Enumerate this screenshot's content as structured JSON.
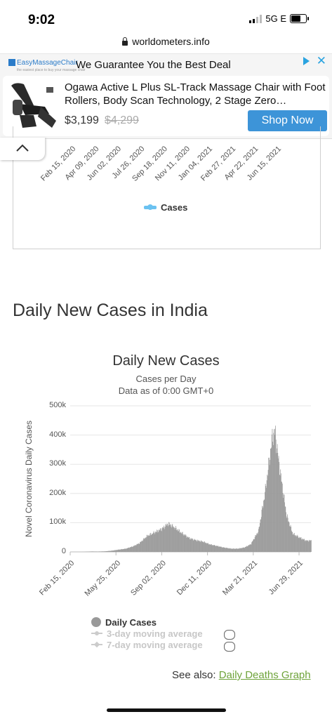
{
  "status_bar": {
    "time": "9:02",
    "network": "5G E"
  },
  "browser": {
    "url": "worldometers.info"
  },
  "ad": {
    "brand": "EasyMassageChair",
    "brand_tagline": "the easiest place to buy your massage chair",
    "headline": "We Guarantee You the Best Deal",
    "title": "Ogawa Active L Plus SL-Track Massage Chair with Foot Rollers, Body Scan Technology, 2 Stage Zero…",
    "price": "$3,199",
    "old_price": "$4,299",
    "cta": "Shop Now"
  },
  "prev_chart": {
    "x_ticks": [
      "Feb 15, 2020",
      "Apr 09, 2020",
      "Jun 02, 2020",
      "Jul 26, 2020",
      "Sep 18, 2020",
      "Nov 11, 2020",
      "Jan 04, 2021",
      "Feb 27, 2021",
      "Apr 22, 2021",
      "Jun 15, 2021"
    ],
    "legend": "Cases"
  },
  "section_heading": "Daily New Cases in India",
  "chart_data": {
    "type": "bar",
    "title": "Daily New Cases",
    "subtitle": "Cases per Day",
    "subtitle2": "Data as of 0:00 GMT+0",
    "ylabel": "Novel Coronavirus Daily Cases",
    "y_ticks": [
      "0",
      "100k",
      "200k",
      "300k",
      "400k",
      "500k"
    ],
    "ylim": [
      0,
      500000
    ],
    "x_ticks": [
      "Feb 15, 2020",
      "May 25, 2020",
      "Sep 02, 2020",
      "Dec 11, 2020",
      "Mar 21, 2021",
      "Jun 29, 2021"
    ],
    "series": [
      {
        "name": "Daily Cases",
        "color": "#999999",
        "points": [
          [
            "2020-02-15",
            0
          ],
          [
            "2020-03-15",
            100
          ],
          [
            "2020-04-01",
            1500
          ],
          [
            "2020-04-15",
            1200
          ],
          [
            "2020-05-01",
            2000
          ],
          [
            "2020-05-15",
            4000
          ],
          [
            "2020-06-01",
            8000
          ],
          [
            "2020-06-15",
            11000
          ],
          [
            "2020-07-01",
            19000
          ],
          [
            "2020-07-15",
            30000
          ],
          [
            "2020-08-01",
            55000
          ],
          [
            "2020-08-15",
            65000
          ],
          [
            "2020-09-01",
            78000
          ],
          [
            "2020-09-16",
            97000
          ],
          [
            "2020-10-01",
            82000
          ],
          [
            "2020-10-15",
            65000
          ],
          [
            "2020-11-01",
            47000
          ],
          [
            "2020-11-15",
            40000
          ],
          [
            "2020-12-01",
            35000
          ],
          [
            "2020-12-15",
            26000
          ],
          [
            "2021-01-01",
            20000
          ],
          [
            "2021-01-15",
            15000
          ],
          [
            "2021-02-01",
            11000
          ],
          [
            "2021-02-15",
            11000
          ],
          [
            "2021-03-01",
            15000
          ],
          [
            "2021-03-15",
            26000
          ],
          [
            "2021-04-01",
            72000
          ],
          [
            "2021-04-15",
            200000
          ],
          [
            "2021-05-01",
            392000
          ],
          [
            "2021-05-07",
            414000
          ],
          [
            "2021-05-15",
            311000
          ],
          [
            "2021-06-01",
            127000
          ],
          [
            "2021-06-15",
            62000
          ],
          [
            "2021-07-01",
            48000
          ],
          [
            "2021-07-15",
            38000
          ],
          [
            "2021-07-25",
            39000
          ]
        ]
      }
    ],
    "legend": [
      {
        "label": "Daily Cases",
        "active": true
      },
      {
        "label": "3-day moving average",
        "active": false
      },
      {
        "label": "7-day moving average",
        "active": false
      }
    ]
  },
  "see_also": {
    "prefix": "See also:",
    "link": "Daily Deaths Graph"
  }
}
